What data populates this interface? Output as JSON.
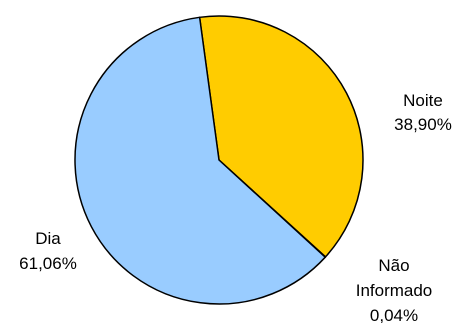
{
  "chart_data": {
    "type": "pie",
    "slices": [
      {
        "label": "Noite",
        "value_text": "38,90%",
        "value": 38.9,
        "color": "#FFCC00"
      },
      {
        "label": "Não Informado",
        "label_lines": [
          "Não",
          "Informado"
        ],
        "value_text": "0,04%",
        "value": 0.04,
        "color": "#FFCC00"
      },
      {
        "label": "Dia",
        "value_text": "61,06%",
        "value": 61.06,
        "color": "#99CCFF"
      }
    ]
  }
}
